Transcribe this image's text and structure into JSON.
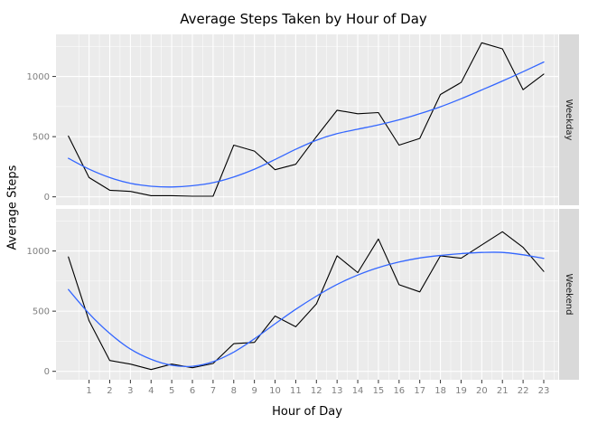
{
  "chart_data": {
    "type": "line",
    "title": "Average Steps Taken by Hour of Day",
    "xlabel": "Hour of Day",
    "ylabel": "Average Steps",
    "x": [
      0,
      1,
      2,
      3,
      4,
      5,
      6,
      7,
      8,
      9,
      10,
      11,
      12,
      13,
      14,
      15,
      16,
      17,
      18,
      19,
      20,
      21,
      22,
      23
    ],
    "x_ticks": [
      1,
      2,
      3,
      4,
      5,
      6,
      7,
      8,
      9,
      10,
      11,
      12,
      13,
      14,
      15,
      16,
      17,
      18,
      19,
      20,
      21,
      22,
      23
    ],
    "y_ticks": [
      0,
      500,
      1000
    ],
    "y_minor": [
      250,
      750,
      1250
    ],
    "ylim": [
      -70,
      1350
    ],
    "panel_bg": "#EBEBEB",
    "strip_bg": "#D9D9D9",
    "grid_color": "#FFFFFF",
    "facets": [
      {
        "label": "Weekday",
        "series": [
          {
            "name": "steps",
            "color": "#000000",
            "smooth": false,
            "values": [
              505,
              160,
              55,
              45,
              10,
              10,
              5,
              5,
              430,
              380,
              225,
              270,
              500,
              720,
              690,
              700,
              430,
              485,
              850,
              950,
              1280,
              1230,
              890,
              1020
            ]
          },
          {
            "name": "smooth",
            "color": "#3366FF",
            "smooth": true,
            "values": [
              320,
              230,
              160,
              112,
              88,
              82,
              92,
              118,
              165,
              230,
              310,
              395,
              470,
              525,
              562,
              598,
              640,
              690,
              748,
              815,
              888,
              962,
              1040,
              1120
            ]
          }
        ]
      },
      {
        "label": "Weekend",
        "series": [
          {
            "name": "steps",
            "color": "#000000",
            "smooth": false,
            "values": [
              950,
              420,
              90,
              60,
              15,
              60,
              30,
              65,
              230,
              240,
              460,
              370,
              560,
              960,
              820,
              1100,
              720,
              660,
              960,
              940,
              1050,
              1160,
              1030,
              830
            ]
          },
          {
            "name": "smooth",
            "color": "#3366FF",
            "smooth": true,
            "values": [
              680,
              480,
              315,
              185,
              100,
              50,
              42,
              80,
              160,
              270,
              395,
              515,
              625,
              722,
              800,
              862,
              908,
              942,
              963,
              978,
              988,
              988,
              968,
              938
            ]
          }
        ]
      }
    ]
  }
}
